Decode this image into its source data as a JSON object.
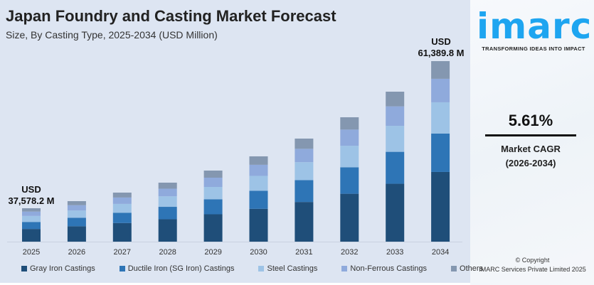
{
  "title": "Japan Foundry and Casting Market Forecast",
  "subtitle": "Size, By Casting Type, 2025-2034 (USD Million)",
  "chart_data": {
    "type": "bar",
    "stacked": true,
    "categories": [
      "2025",
      "2026",
      "2027",
      "2028",
      "2029",
      "2030",
      "2031",
      "2032",
      "2033",
      "2034"
    ],
    "totals": [
      37578.2,
      38728,
      40109,
      41720,
      43675,
      45976,
      48852,
      52303,
      56444,
      61389.8
    ],
    "series": [
      {
        "name": "Gray Iron Castings",
        "color": "#1f4e79",
        "shares": [
          0.38,
          0.38,
          0.38,
          0.38,
          0.385,
          0.385,
          0.385,
          0.385,
          0.386,
          0.386
        ]
      },
      {
        "name": "Ductile Iron (SG Iron) Castings",
        "color": "#2e75b6",
        "shares": [
          0.21,
          0.21,
          0.21,
          0.21,
          0.21,
          0.212,
          0.212,
          0.213,
          0.213,
          0.213
        ]
      },
      {
        "name": "Steel Castings",
        "color": "#9dc3e6",
        "shares": [
          0.18,
          0.18,
          0.18,
          0.178,
          0.175,
          0.174,
          0.174,
          0.173,
          0.173,
          0.173
        ]
      },
      {
        "name": "Non-Ferrous Castings",
        "color": "#8faadc",
        "shares": [
          0.13,
          0.13,
          0.13,
          0.13,
          0.13,
          0.13,
          0.13,
          0.13,
          0.13,
          0.13
        ]
      },
      {
        "name": "Others",
        "color": "#8497b0",
        "shares": [
          0.1,
          0.1,
          0.1,
          0.102,
          0.1,
          0.099,
          0.099,
          0.099,
          0.098,
          0.098
        ]
      }
    ],
    "annotations": {
      "first": [
        "USD",
        "37,578.2 M"
      ],
      "last": [
        "USD",
        "61,389.8 M"
      ]
    },
    "xlabel": "",
    "ylabel": "",
    "grid": false,
    "legend": "bottom"
  },
  "brand": {
    "logo": "imarc",
    "tagline": "TRANSFORMING IDEAS INTO IMPACT",
    "color": "#1ea5f0"
  },
  "cagr": {
    "value": "5.61%",
    "label": "Market CAGR",
    "period": "(2026-2034)"
  },
  "copyright": {
    "line1": "© Copyright",
    "line2": "IMARC Services Private Limited 2025"
  }
}
